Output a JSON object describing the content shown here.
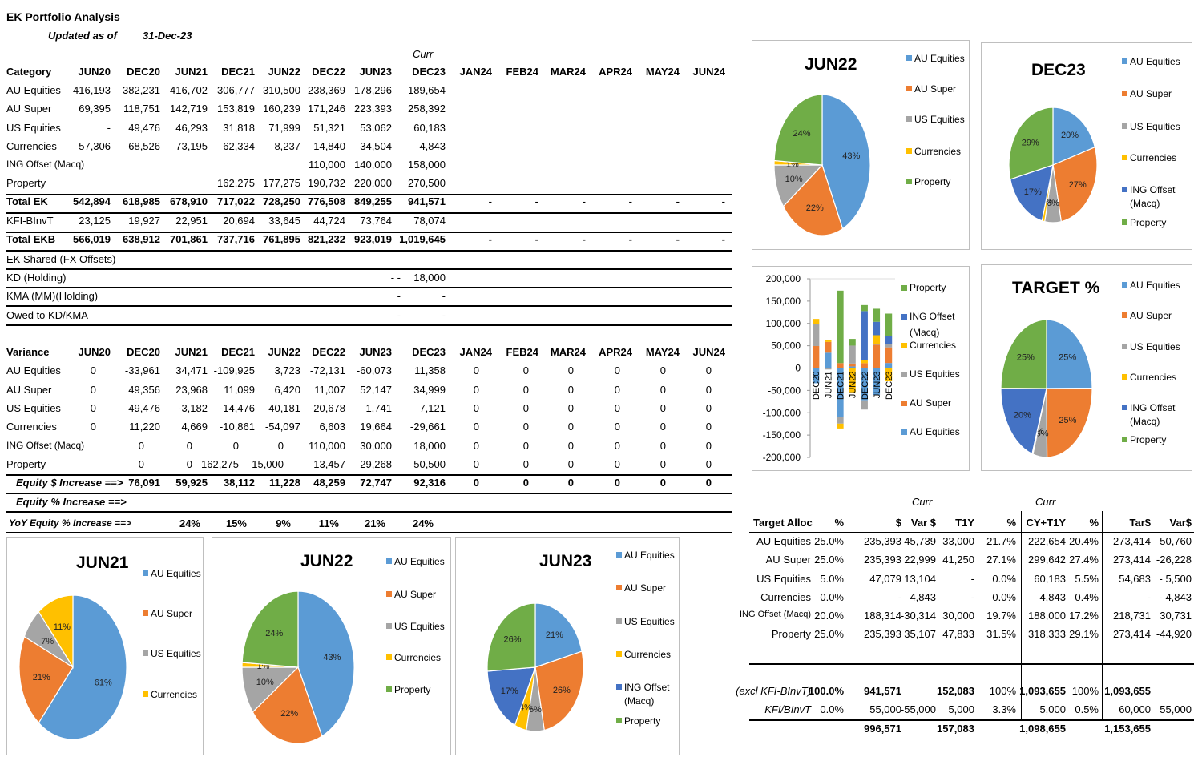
{
  "header": {
    "title": "EK Portfolio Analysis",
    "updated_label": "Updated as of",
    "updated_date": "31-Dec-23",
    "curr_label": "Curr"
  },
  "periods": [
    "JUN20",
    "DEC20",
    "JUN21",
    "DEC21",
    "JUN22",
    "DEC22",
    "JUN23",
    "DEC23",
    "JAN24",
    "FEB24",
    "MAR24",
    "APR24",
    "MAY24",
    "JUN24"
  ],
  "main_table": {
    "header_label": "Category",
    "rows": [
      {
        "label": "AU Equities",
        "values": [
          "416,193",
          "382,231",
          "416,702",
          "306,777",
          "310,500",
          "238,369",
          "178,296",
          "189,654",
          "",
          "",
          "",
          "",
          "",
          ""
        ]
      },
      {
        "label": "AU Super",
        "values": [
          "69,395",
          "118,751",
          "142,719",
          "153,819",
          "160,239",
          "171,246",
          "223,393",
          "258,392",
          "",
          "",
          "",
          "",
          "",
          ""
        ]
      },
      {
        "label": "US Equities",
        "values": [
          "-",
          "49,476",
          "46,293",
          "31,818",
          "71,999",
          "51,321",
          "53,062",
          "60,183",
          "",
          "",
          "",
          "",
          "",
          ""
        ]
      },
      {
        "label": "Currencies",
        "values": [
          "57,306",
          "68,526",
          "73,195",
          "62,334",
          "8,237",
          "14,840",
          "34,504",
          "4,843",
          "",
          "",
          "",
          "",
          "",
          ""
        ]
      },
      {
        "label": "ING Offset (Macq)",
        "values": [
          "",
          "",
          "",
          "",
          "",
          "110,000",
          "140,000",
          "158,000",
          "",
          "",
          "",
          "",
          "",
          ""
        ]
      },
      {
        "label": "Property",
        "values": [
          "",
          "",
          "",
          "162,275",
          "177,275",
          "190,732",
          "220,000",
          "270,500",
          "",
          "",
          "",
          "",
          "",
          ""
        ]
      },
      {
        "label": "Total EK",
        "values": [
          "542,894",
          "618,985",
          "678,910",
          "717,022",
          "728,250",
          "776,508",
          "849,255",
          "941,571",
          "-",
          "-",
          "-",
          "-",
          "-",
          "-"
        ]
      },
      {
        "label": "KFI-BInvT",
        "values": [
          "23,125",
          "19,927",
          "22,951",
          "20,694",
          "33,645",
          "44,724",
          "73,764",
          "78,074",
          "",
          "",
          "",
          "",
          "",
          ""
        ]
      },
      {
        "label": "Total EKB",
        "values": [
          "566,019",
          "638,912",
          "701,861",
          "737,716",
          "761,895",
          "821,232",
          "923,019",
          "1,019,645",
          "-",
          "-",
          "-",
          "-",
          "-",
          "-"
        ]
      }
    ],
    "extra_rows": [
      {
        "label": "EK Shared (FX Offsets)",
        "a": "",
        "b": ""
      },
      {
        "label": "KD (Holding)",
        "a": "- -",
        "b": "18,000"
      },
      {
        "label": "KMA (MM)(Holding)",
        "a": "-",
        "b": "-"
      },
      {
        "label": "Owed to KD/KMA",
        "a": "-",
        "b": "-"
      }
    ]
  },
  "variance_table": {
    "header_label": "Variance",
    "rows": [
      {
        "label": "AU Equities",
        "values": [
          "0",
          "-33,961",
          "34,471",
          "-109,925",
          "3,723",
          "-72,131",
          "-60,073",
          "11,358",
          "0",
          "0",
          "0",
          "0",
          "0",
          "0"
        ]
      },
      {
        "label": "AU Super",
        "values": [
          "0",
          "49,356",
          "23,968",
          "11,099",
          "6,420",
          "11,007",
          "52,147",
          "34,999",
          "0",
          "0",
          "0",
          "0",
          "0",
          "0"
        ]
      },
      {
        "label": "US Equities",
        "values": [
          "0",
          "49,476",
          "-3,182",
          "-14,476",
          "40,181",
          "-20,678",
          "1,741",
          "7,121",
          "0",
          "0",
          "0",
          "0",
          "0",
          "0"
        ]
      },
      {
        "label": "Currencies",
        "values": [
          "0",
          "11,220",
          "4,669",
          "-10,861",
          "-54,097",
          "6,603",
          "19,664",
          "-29,661",
          "0",
          "0",
          "0",
          "0",
          "0",
          "0"
        ]
      },
      {
        "label": "ING Offset (Macq)",
        "values": [
          "",
          "0",
          "0",
          "0",
          "0",
          "110,000",
          "30,000",
          "18,000",
          "0",
          "0",
          "0",
          "0",
          "0",
          "0"
        ]
      },
      {
        "label": "Property",
        "values": [
          "",
          "0",
          "0",
          "162,275",
          "15,000",
          "13,457",
          "29,268",
          "50,500",
          "0",
          "0",
          "0",
          "0",
          "0",
          "0"
        ]
      },
      {
        "label": "Equity $ Increase ==>",
        "values": [
          "",
          "76,091",
          "59,925",
          "38,112",
          "11,228",
          "48,259",
          "72,747",
          "92,316",
          "0",
          "0",
          "0",
          "0",
          "0",
          "0"
        ]
      }
    ],
    "equity_pct_label": "Equity % Increase ==>",
    "yoy_label": "YoY Equity % Increase ==>",
    "yoy_values": [
      "24%",
      "15%",
      "9%",
      "11%",
      "21%",
      "24%"
    ]
  },
  "legend": {
    "au_equities": "AU Equities",
    "au_super": "AU Super",
    "us_equities": "US Equities",
    "currencies": "Currencies",
    "ing_offset_1": "ING Offset",
    "ing_offset_2": "(Macq)",
    "property": "Property"
  },
  "colors": {
    "au_equities": "#5b9bd5",
    "au_super": "#ed7d31",
    "us_equities": "#a5a5a5",
    "currencies": "#ffc000",
    "ing_offset": "#4472c4",
    "property": "#70ad47"
  },
  "pies": [
    {
      "id": "jun22_top",
      "title": "JUN22",
      "labels": [
        "43%",
        "22%",
        "10%",
        "1%",
        "24%"
      ],
      "values": [
        43,
        22,
        10,
        1,
        24
      ],
      "cats": [
        "au_equities",
        "au_super",
        "us_equities",
        "currencies",
        "property"
      ]
    },
    {
      "id": "dec23_top",
      "title": "DEC23",
      "labels": [
        "20%",
        "27%",
        "6%",
        "1%",
        "17%",
        "29%"
      ],
      "values": [
        20,
        27,
        6,
        1,
        17,
        29
      ],
      "cats": [
        "au_equities",
        "au_super",
        "us_equities",
        "currencies",
        "ing_offset",
        "property"
      ]
    },
    {
      "id": "target",
      "title": "TARGET %",
      "labels": [
        "25%",
        "25%",
        "5%",
        "0%",
        "20%",
        "25%"
      ],
      "values": [
        25,
        25,
        5,
        0.3,
        20,
        25
      ],
      "cats": [
        "au_equities",
        "au_super",
        "us_equities",
        "currencies",
        "ing_offset",
        "property"
      ]
    },
    {
      "id": "jun21",
      "title": "JUN21",
      "labels": [
        "61%",
        "21%",
        "7%",
        "11%"
      ],
      "values": [
        61,
        21,
        7,
        11
      ],
      "cats": [
        "au_equities",
        "au_super",
        "us_equities",
        "currencies"
      ]
    },
    {
      "id": "jun22_bot",
      "title": "JUN22",
      "labels": [
        "43%",
        "22%",
        "10%",
        "1%",
        "24%"
      ],
      "values": [
        43,
        22,
        10,
        1,
        24
      ],
      "cats": [
        "au_equities",
        "au_super",
        "us_equities",
        "currencies",
        "property"
      ]
    },
    {
      "id": "jun23",
      "title": "JUN23",
      "labels": [
        "21%",
        "26%",
        "6%",
        "4%",
        "17%",
        "26%"
      ],
      "values": [
        21,
        26,
        6,
        4,
        17,
        26
      ],
      "cats": [
        "au_equities",
        "au_super",
        "us_equities",
        "currencies",
        "ing_offset",
        "property"
      ]
    }
  ],
  "chart_data": {
    "type": "bar",
    "title": "",
    "categories": [
      "DEC20",
      "JUN21",
      "DEC21",
      "JUN22",
      "DEC22",
      "JUN23",
      "DEC23"
    ],
    "ylim": [
      -200000,
      200000
    ],
    "yticks": [
      "200,000",
      "150,000",
      "100,000",
      "50,000",
      "0",
      "-50,000",
      "-100,000",
      "-150,000",
      "-200,000"
    ],
    "series": [
      {
        "name": "AU Equities",
        "key": "au_equities",
        "values": [
          -33961,
          34471,
          -109925,
          3723,
          -72131,
          -60073,
          11358
        ]
      },
      {
        "name": "AU Super",
        "key": "au_super",
        "values": [
          49356,
          23968,
          11099,
          6420,
          11007,
          52147,
          34999
        ]
      },
      {
        "name": "US Equities",
        "key": "us_equities",
        "values": [
          49476,
          -3182,
          -14476,
          40181,
          -20678,
          1741,
          7121
        ]
      },
      {
        "name": "Currencies",
        "key": "currencies",
        "values": [
          11220,
          4669,
          -10861,
          -54097,
          6603,
          19664,
          -29661
        ]
      },
      {
        "name": "ING Offset (Macq)",
        "key": "ing_offset",
        "values": [
          0,
          0,
          0,
          0,
          110000,
          30000,
          18000
        ]
      },
      {
        "name": "Property",
        "key": "property",
        "values": [
          0,
          0,
          162275,
          15000,
          13457,
          29268,
          50500
        ]
      }
    ],
    "legend": [
      "Property",
      "ING Offset (Macq)",
      "Currencies",
      "US Equities",
      "AU Super",
      "AU Equities"
    ]
  },
  "target_table": {
    "curr1": "Curr",
    "curr2": "Curr",
    "headers": [
      "Target Alloc",
      "%",
      "$",
      "Var $",
      "T1Y",
      "%",
      "CY+T1Y",
      "%",
      "Tar$",
      "Var$"
    ],
    "rows": [
      [
        "AU Equities",
        "25.0%",
        "235,393",
        "-45,739",
        "33,000",
        "21.7%",
        "222,654",
        "20.4%",
        "273,414",
        "50,760"
      ],
      [
        "AU Super",
        "25.0%",
        "235,393",
        "22,999",
        "41,250",
        "27.1%",
        "299,642",
        "27.4%",
        "273,414",
        "-26,228"
      ],
      [
        "US Equities",
        "5.0%",
        "47,079",
        "13,104",
        "-",
        "0.0%",
        "60,183",
        "5.5%",
        "54,683",
        "- 5,500"
      ],
      [
        "Currencies",
        "0.0%",
        "-",
        "4,843",
        "-",
        "0.0%",
        "4,843",
        "0.4%",
        "-",
        "- 4,843"
      ],
      [
        "ING Offset (Macq)",
        "20.0%",
        "188,314",
        "-30,314",
        "30,000",
        "19.7%",
        "188,000",
        "17.2%",
        "218,731",
        "30,731"
      ],
      [
        "Property",
        "25.0%",
        "235,393",
        "35,107",
        "47,833",
        "31.5%",
        "318,333",
        "29.1%",
        "273,414",
        "-44,920"
      ]
    ],
    "excl_row": [
      "(excl KFI-BInvT)",
      "100.0%",
      "941,571",
      "",
      "152,083",
      "100%",
      "1,093,655",
      "100%",
      "1,093,655",
      ""
    ],
    "kfi_row": [
      "KFI/BInvT",
      "0.0%",
      "55,000",
      "-55,000",
      "5,000",
      "3.3%",
      "5,000",
      "0.5%",
      "60,000",
      "55,000"
    ],
    "total_row": [
      "",
      "",
      "996,571",
      "",
      "157,083",
      "",
      "1,098,655",
      "",
      "1,153,655",
      ""
    ]
  }
}
